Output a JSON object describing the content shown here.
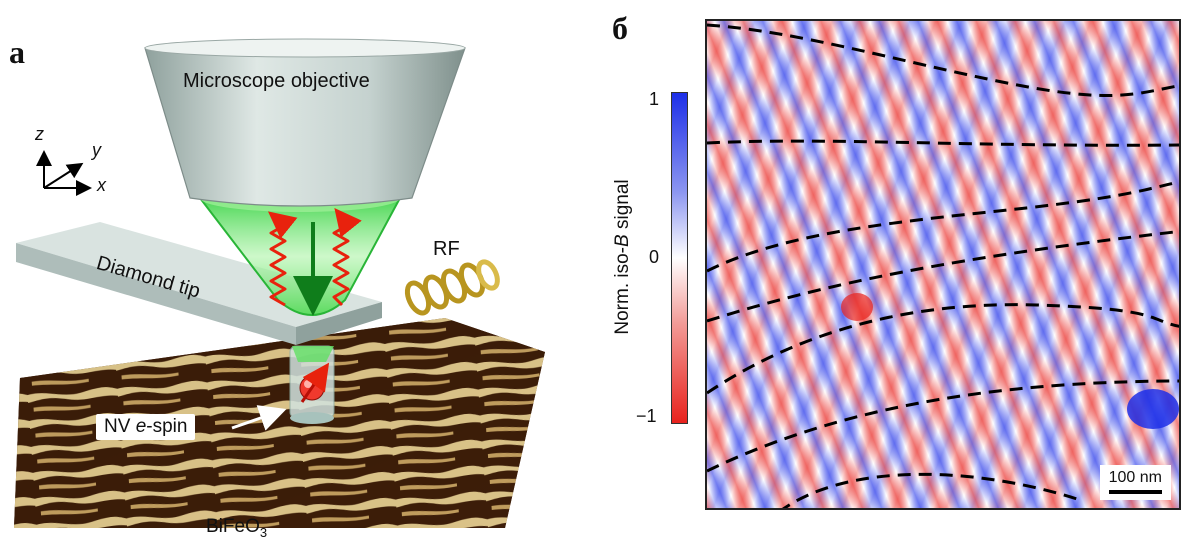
{
  "panel_a": {
    "letter": "a",
    "objective_label": "Microscope objective",
    "tip_label": "Diamond tip",
    "rf_label": "RF",
    "nv_label_prefix": "NV ",
    "nv_label_italic": "e",
    "nv_label_suffix": "-spin",
    "sample_label": "BiFeO",
    "sample_subscript": "3",
    "axes": {
      "z": "z",
      "y": "y",
      "x": "x"
    },
    "colors": {
      "objective": "#c9d6d3",
      "beam": "#59e15d",
      "arrow": "#e8220d",
      "sample_dark": "#3a1e0c",
      "sample_light": "#e7d39c"
    }
  },
  "panel_b": {
    "letter": "б",
    "colorbar_label_prefix": "Norm. iso-",
    "colorbar_label_italic": "B",
    "colorbar_label_suffix": " signal",
    "colorbar_ticks": [
      "1",
      "0",
      "−1"
    ],
    "scalebar_label": "100 nm",
    "colors": {
      "positive": "#1d2fe8",
      "zero": "#ffffff",
      "negative": "#e8221d"
    }
  }
}
